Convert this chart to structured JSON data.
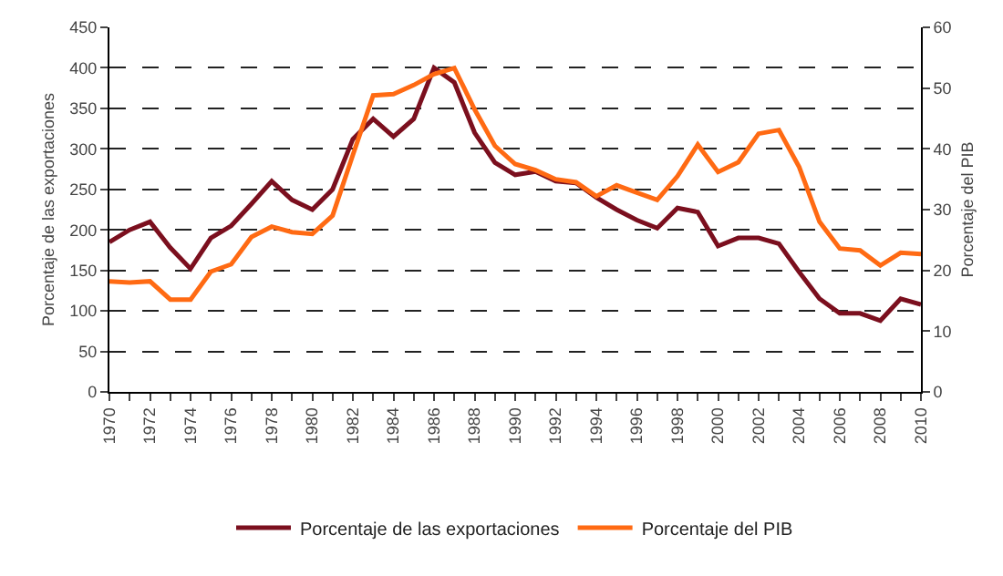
{
  "chart_data": {
    "type": "line",
    "ylabel": "Porcentaje de las exportaciones",
    "y2label": "Porcentaje del PIB",
    "x": [
      1970,
      1971,
      1972,
      1973,
      1974,
      1975,
      1976,
      1977,
      1978,
      1979,
      1980,
      1981,
      1982,
      1983,
      1984,
      1985,
      1986,
      1987,
      1988,
      1989,
      1990,
      1991,
      1992,
      1993,
      1994,
      1995,
      1996,
      1997,
      1998,
      1999,
      2000,
      2001,
      2002,
      2003,
      2004,
      2005,
      2006,
      2007,
      2008,
      2009,
      2010
    ],
    "series": [
      {
        "name": "Porcentaje de las exportaciones",
        "color": "#7b0f1e",
        "values": [
          185,
          200,
          210,
          178,
          152,
          190,
          205,
          232,
          260,
          237,
          225,
          250,
          312,
          337,
          315,
          337,
          400,
          382,
          320,
          283,
          268,
          272,
          260,
          258,
          240,
          225,
          212,
          202,
          227,
          222,
          180,
          190,
          190,
          183,
          148,
          115,
          97,
          97,
          88,
          115,
          108
        ]
      },
      {
        "name": "Porcentaje del PIB",
        "color": "#ff6a13",
        "axis": "y2",
        "values": [
          18.2,
          18,
          18.2,
          15.2,
          15.2,
          19.8,
          21,
          25.5,
          27.2,
          26.3,
          26,
          29,
          39,
          48.8,
          49,
          50.5,
          52.3,
          53.3,
          46.5,
          40.5,
          37.5,
          36.5,
          35,
          34.5,
          32.2,
          34,
          32.8,
          31.6,
          35.5,
          40.7,
          36.2,
          37.8,
          42.5,
          43.1,
          37,
          28,
          23.6,
          23.3,
          20.8,
          22.9,
          22.7
        ]
      }
    ],
    "xlim": [
      1970,
      2010
    ],
    "xticks": [
      1970,
      {
        "value": 1971,
        "label": null
      },
      1972,
      {
        "value": 1973,
        "label": null
      },
      1974,
      {
        "value": 1975,
        "label": null
      },
      1976,
      {
        "value": 1977,
        "label": null
      },
      1978,
      {
        "value": 1979,
        "label": null
      },
      1980,
      {
        "value": 1981,
        "label": null
      },
      1982,
      {
        "value": 1983,
        "label": null
      },
      1984,
      {
        "value": 1985,
        "label": null
      },
      1986,
      {
        "value": 1987,
        "label": null
      },
      1988,
      {
        "value": 1989,
        "label": null
      },
      1990,
      {
        "value": 1991,
        "label": null
      },
      1992,
      {
        "value": 1993,
        "label": null
      },
      1994,
      {
        "value": 1995,
        "label": null
      },
      1996,
      {
        "value": 1997,
        "label": null
      },
      1998,
      {
        "value": 1999,
        "label": null
      },
      2000,
      {
        "value": 2001,
        "label": null
      },
      2002,
      {
        "value": 2003,
        "label": null
      },
      2004,
      {
        "value": 2005,
        "label": null
      },
      2006,
      {
        "value": 2007,
        "label": null
      },
      2008,
      {
        "value": 2009,
        "label": null
      },
      2010
    ],
    "ylim": [
      0,
      450
    ],
    "yticks": [
      0,
      50,
      100,
      150,
      200,
      250,
      300,
      350,
      400,
      450
    ],
    "y2lim": [
      0,
      60
    ],
    "y2ticks": [
      0,
      10,
      20,
      30,
      40,
      50,
      60
    ],
    "grid": "y",
    "legend": "bottom",
    "marker": "none",
    "line_style": "solid"
  }
}
